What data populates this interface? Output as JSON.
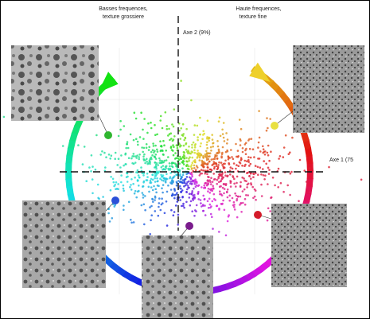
{
  "labels": {
    "low_freq": [
      "Basses frequences,",
      "texture grossiere"
    ],
    "high_freq": [
      "Haute frequences,",
      "texture fine"
    ],
    "axis2": "Axe 2 (9%)",
    "axis1": "Axe 1 (75"
  }
}
